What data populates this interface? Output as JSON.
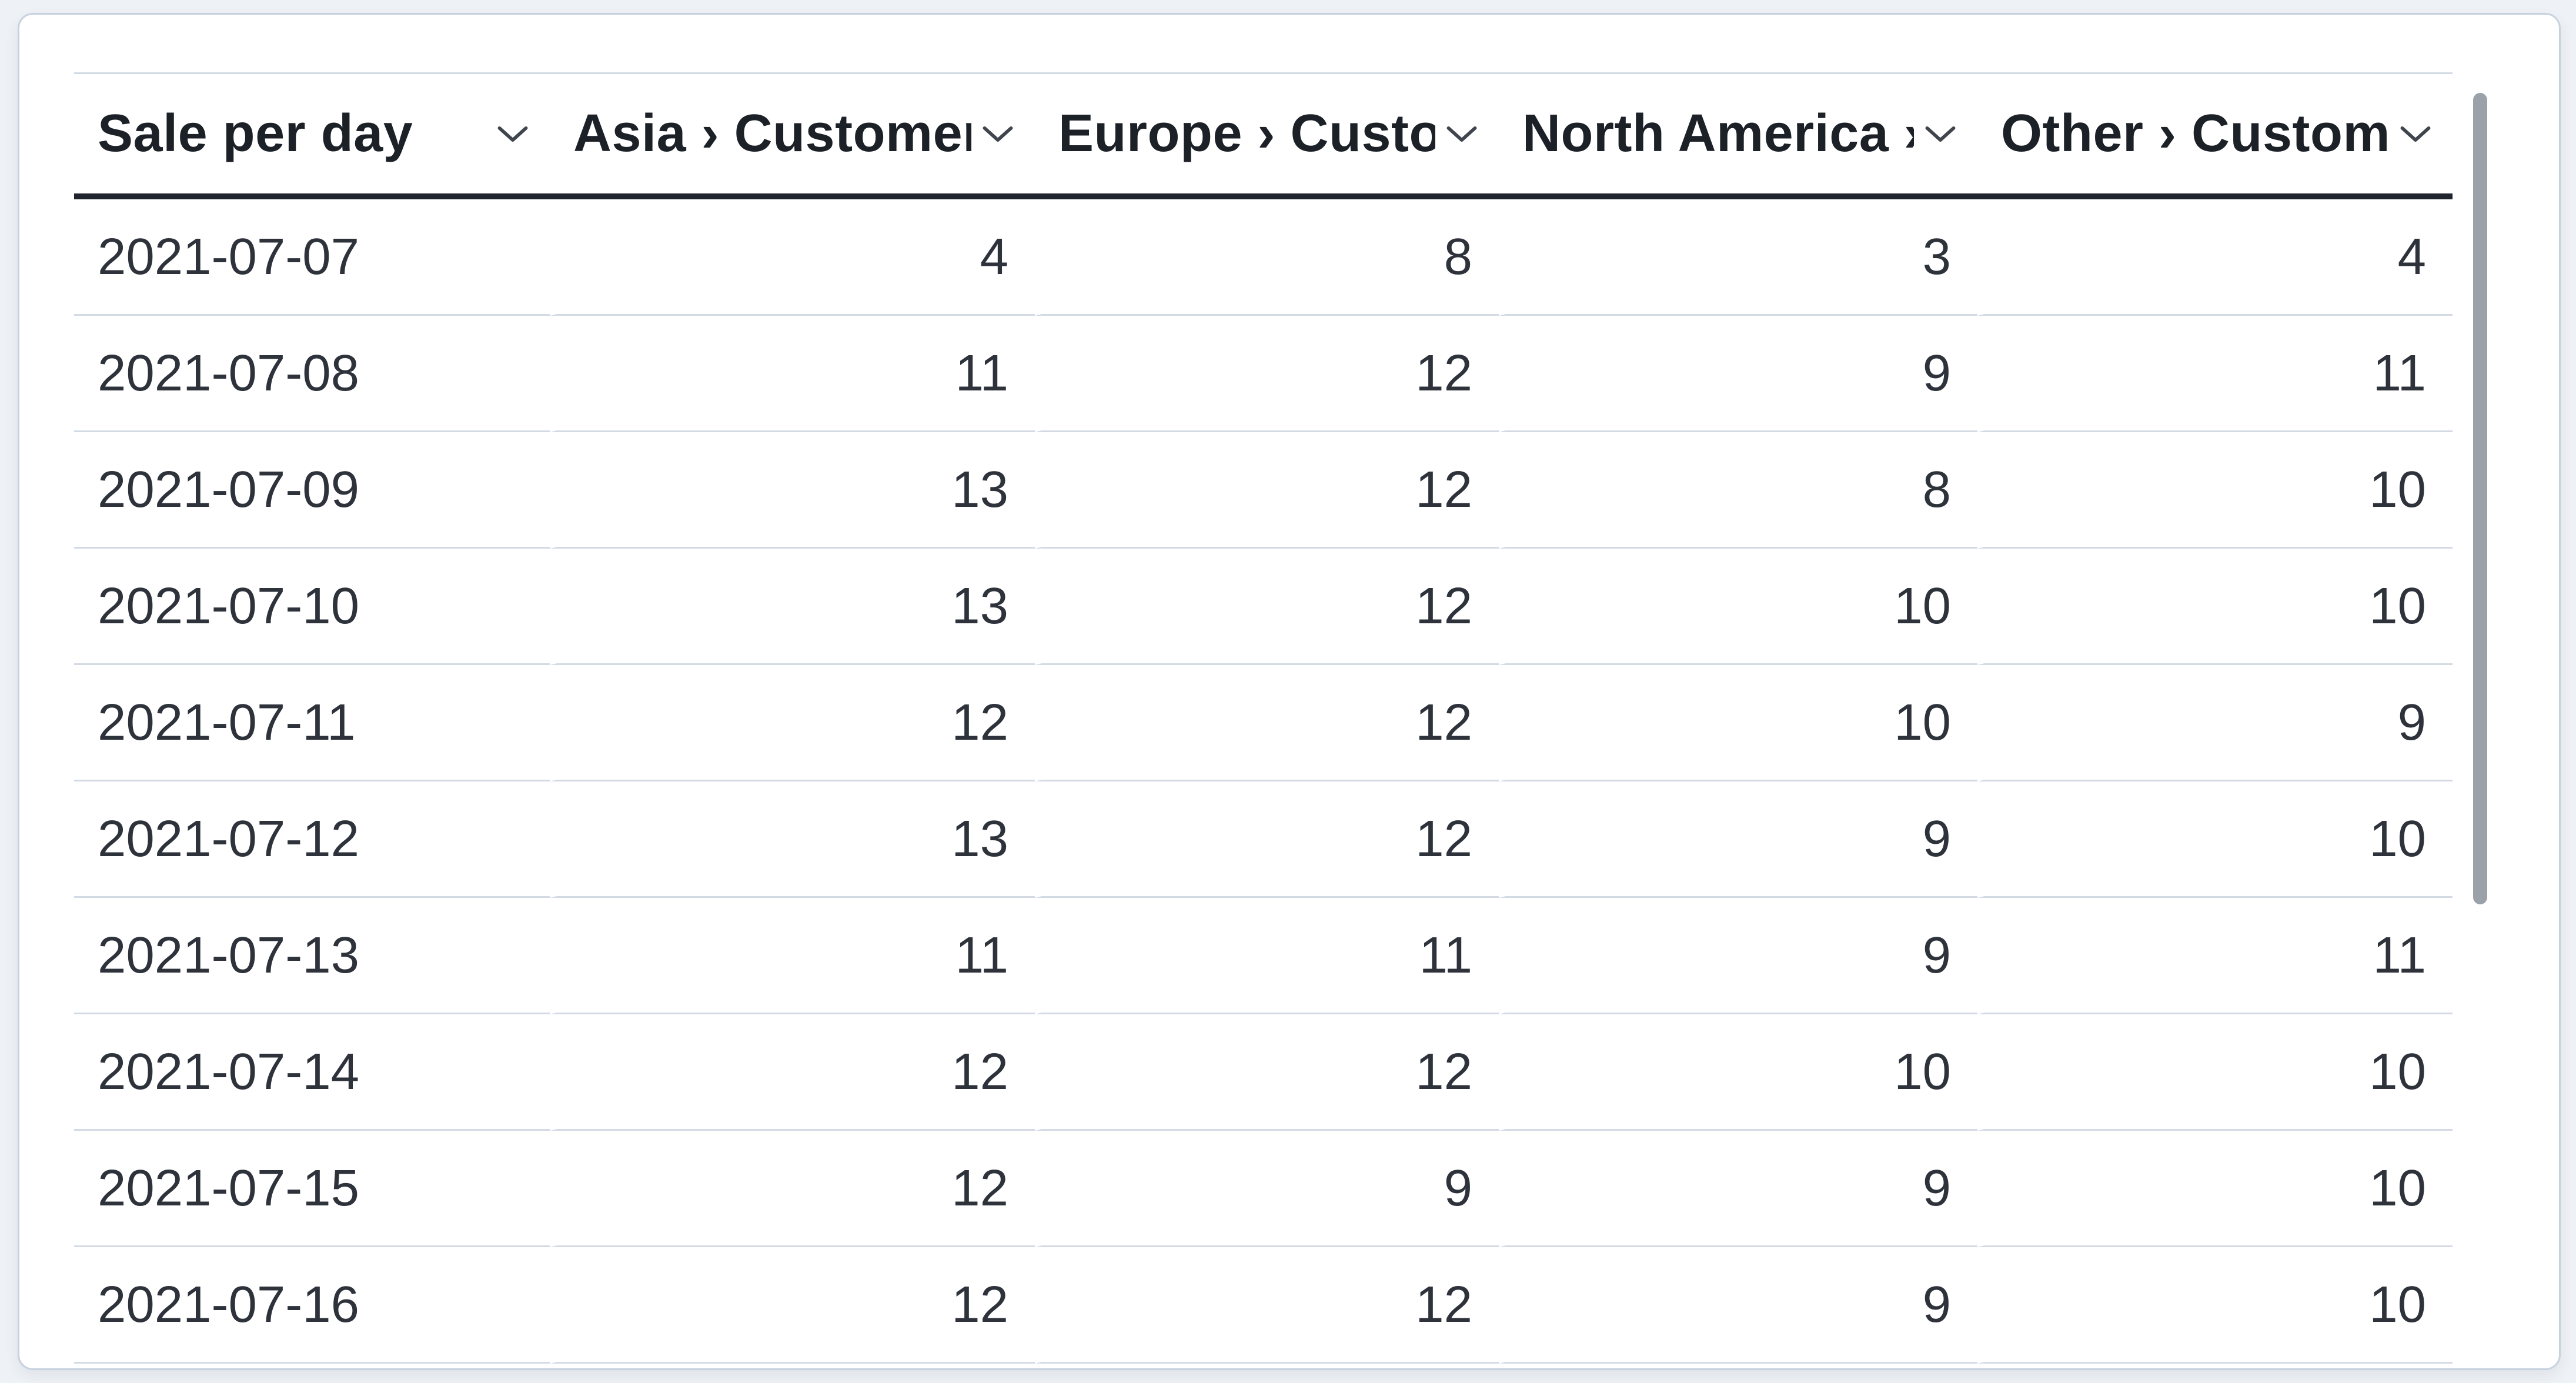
{
  "card": {
    "name": "sale-per-day-table-card"
  },
  "table": {
    "columns": [
      {
        "label": "Sale per day",
        "align": "left"
      },
      {
        "label": "Asia › Customers",
        "align": "right"
      },
      {
        "label": "Europe › Customers",
        "align": "right"
      },
      {
        "label": "North America › Customers",
        "align": "right"
      },
      {
        "label": "Other › Customers",
        "align": "right"
      }
    ],
    "rows": [
      [
        "2021-07-07",
        "4",
        "8",
        "3",
        "4"
      ],
      [
        "2021-07-08",
        "11",
        "12",
        "9",
        "11"
      ],
      [
        "2021-07-09",
        "13",
        "12",
        "8",
        "10"
      ],
      [
        "2021-07-10",
        "13",
        "12",
        "10",
        "10"
      ],
      [
        "2021-07-11",
        "12",
        "12",
        "10",
        "9"
      ],
      [
        "2021-07-12",
        "13",
        "12",
        "9",
        "10"
      ],
      [
        "2021-07-13",
        "11",
        "11",
        "9",
        "11"
      ],
      [
        "2021-07-14",
        "12",
        "12",
        "10",
        "10"
      ],
      [
        "2021-07-15",
        "12",
        "9",
        "9",
        "10"
      ],
      [
        "2021-07-16",
        "12",
        "12",
        "9",
        "10"
      ]
    ]
  },
  "chart_data": {
    "type": "table",
    "title": "Sale per day",
    "categories": [
      "2021-07-07",
      "2021-07-08",
      "2021-07-09",
      "2021-07-10",
      "2021-07-11",
      "2021-07-12",
      "2021-07-13",
      "2021-07-14",
      "2021-07-15",
      "2021-07-16"
    ],
    "series": [
      {
        "name": "Asia › Customers",
        "values": [
          4,
          11,
          13,
          13,
          12,
          13,
          11,
          12,
          12,
          12
        ]
      },
      {
        "name": "Europe › Customers",
        "values": [
          8,
          12,
          12,
          12,
          12,
          12,
          11,
          12,
          9,
          12
        ]
      },
      {
        "name": "North America › Customers",
        "values": [
          3,
          9,
          8,
          10,
          10,
          9,
          9,
          10,
          9,
          9
        ]
      },
      {
        "name": "Other › Customers",
        "values": [
          4,
          11,
          10,
          10,
          9,
          10,
          11,
          10,
          10,
          10
        ]
      }
    ]
  },
  "icons": {
    "header_sort": "chevron-down-icon"
  },
  "colors": {
    "page_background": "#eef1f5",
    "card_background": "#ffffff",
    "card_border": "#c7d2df",
    "header_text": "#1c2027",
    "header_rule": "#20242c",
    "row_separator": "#d3dae4",
    "body_text": "#2e323b",
    "chevron": "#3f444d",
    "scrollbar_thumb": "#9aa1a9"
  }
}
